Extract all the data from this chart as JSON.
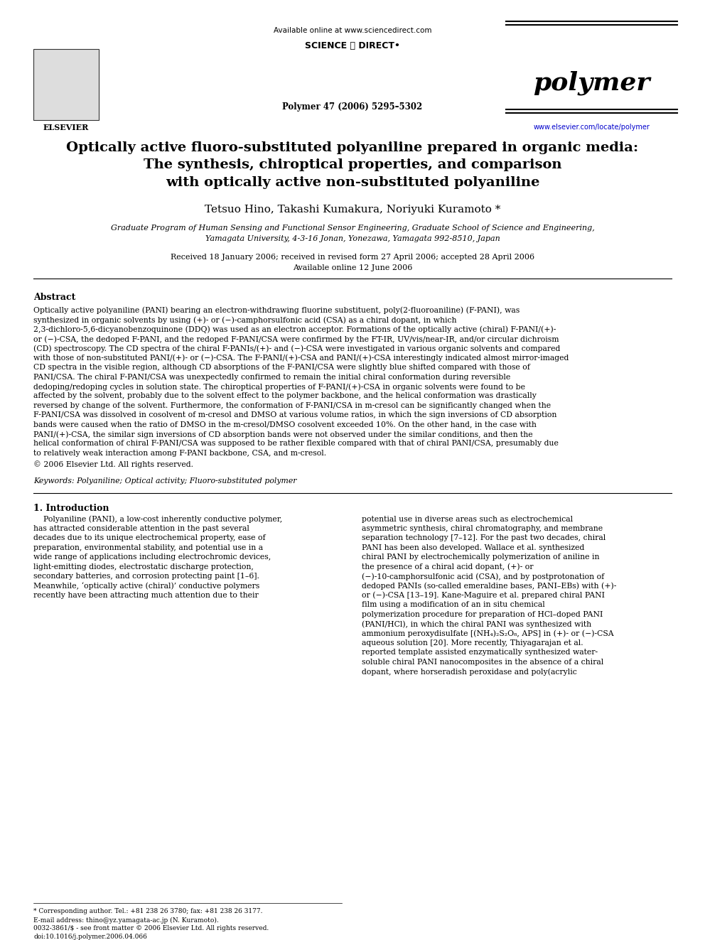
{
  "bg_color": "#ffffff",
  "title_line1": "Optically active fluoro-substituted polyaniline prepared in organic media:",
  "title_line2": "The synthesis, chiroptical properties, and comparison",
  "title_line3": "with optically active non-substituted polyaniline",
  "authors": "Tetsuo Hino, Takashi Kumakura, Noriyuki Kuramoto *",
  "affiliation1": "Graduate Program of Human Sensing and Functional Sensor Engineering, Graduate School of Science and Engineering,",
  "affiliation2": "Yamagata University, 4-3-16 Jonan, Yonezawa, Yamagata 992-8510, Japan",
  "received": "Received 18 January 2006; received in revised form 27 April 2006; accepted 28 April 2006",
  "available": "Available online 12 June 2006",
  "journal_name": "polymer",
  "journal_info": "Polymer 47 (2006) 5295–5302",
  "available_online": "Available online at www.sciencedirect.com",
  "elsevier_url": "www.elsevier.com/locate/polymer",
  "abstract_title": "Abstract",
  "abstract_text": "Optically active polyaniline (PANI) bearing an electron-withdrawing fluorine substituent, poly(2-fluoroaniline) (F-PANI), was synthesized in organic solvents by using (+)- or (−)-camphorsulfonic acid (CSA) as a chiral dopant, in which 2,3-dichloro-5,6-dicyanobenzoquinone (DDQ) was used as an electron acceptor. Formations of the optically active (chiral) F-PANI/(+)- or (−)-CSA, the dedoped F-PANI, and the redoped F-PANI/CSA were confirmed by the FT-IR, UV/vis/near-IR, and/or circular dichroism (CD) spectroscopy. The CD spectra of the chiral F-PANIs/(+)- and (−)-CSA were investigated in various organic solvents and compared with those of non-substituted PANI/(+)- or (−)-CSA. The F-PANI/(+)-CSA and PANI/(+)-CSA interestingly indicated almost mirror-imaged CD spectra in the visible region, although CD absorptions of the F-PANI/CSA were slightly blue shifted compared with those of PANI/CSA. The chiral F-PANI/CSA was unexpectedly confirmed to remain the initial chiral conformation during reversible dedoping/redoping cycles in solution state. The chiroptical properties of F-PANI/(+)-CSA in organic solvents were found to be affected by the solvent, probably due to the solvent effect to the polymer backbone, and the helical conformation was drastically reversed by change of the solvent. Furthermore, the conformation of F-PANI/CSA in m-cresol can be significantly changed when the F-PANI/CSA was dissolved in cosolvent of m-cresol and DMSO at various volume ratios, in which the sign inversions of CD absorption bands were caused when the ratio of DMSO in the m-cresol/DMSO cosolvent exceeded 10%. On the other hand, in the case with PANI/(+)-CSA, the similar sign inversions of CD absorption bands were not observed under the similar conditions, and then the helical conformation of chiral F-PANI/CSA was supposed to be rather flexible compared with that of chiral PANI/CSA, presumably due to relatively weak interaction among F-PANI backbone, CSA, and m-cresol.",
  "copyright": "© 2006 Elsevier Ltd. All rights reserved.",
  "keywords": "Keywords: Polyaniline; Optical activity; Fluoro-substituted polymer",
  "intro_title": "1. Introduction",
  "intro_left": "Polyaniline (PANI), a low-cost inherently conductive polymer, has attracted considerable attention in the past several decades due to its unique electrochemical property, ease of preparation, environmental stability, and potential use in a wide range of applications including electrochromic devices, light-emitting diodes, electrostatic discharge protection, secondary batteries, and corrosion protecting paint [1–6]. Meanwhile, ‘optically active (chiral)’ conductive polymers recently have been attracting much attention due to their",
  "intro_right": "potential use in diverse areas such as electrochemical asymmetric synthesis, chiral chromatography, and membrane separation technology [7–12]. For the past two decades, chiral PANI has been also developed. Wallace et al. synthesized chiral PANI by electrochemically polymerization of aniline in the presence of a chiral acid dopant, (+)- or (−)-10-camphorsulfonic acid (CSA), and by postprotonation of dedoped PANIs (so-called emeraldine bases, PANI–EBs) with (+)- or (−)-CSA [13–19]. Kane-Maguire et al. prepared chiral PANI film using a modification of an in situ chemical polymerization procedure for preparation of HCl–doped PANI (PANI/HCl), in which the chiral PANI was synthesized with ammonium peroxydisulfate [(NH₄)₂S₂O₈, APS] in (+)- or (−)-CSA aqueous solution [20]. More recently, Thiyagarajan et al. reported template assisted enzymatically synthesized water-soluble chiral PANI nanocomposites in the absence of a chiral dopant, where horseradish peroxidase and poly(acrylic",
  "footnote1": "* Corresponding author. Tel.: +81 238 26 3780; fax: +81 238 26 3177.",
  "footnote2": "E-mail address: thino@yz.yamagata-ac.jp (N. Kuramoto).",
  "footnote3": "0032-3861/$ - see front matter © 2006 Elsevier Ltd. All rights reserved.",
  "footnote4": "doi:10.1016/j.polymer.2006.04.066"
}
